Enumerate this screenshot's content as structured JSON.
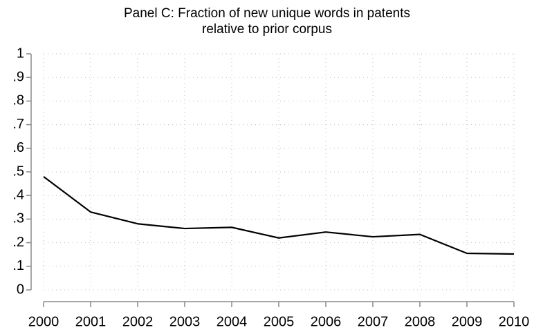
{
  "chart_data": {
    "type": "line",
    "title": [
      "Panel C: Fraction of new unique words in patents",
      "relative to prior corpus"
    ],
    "x": [
      2000,
      2001,
      2002,
      2003,
      2004,
      2005,
      2006,
      2007,
      2008,
      2009,
      2010
    ],
    "series": [
      {
        "color": "#000000",
        "values": [
          0.48,
          0.33,
          0.28,
          0.26,
          0.265,
          0.22,
          0.245,
          0.225,
          0.235,
          0.155,
          0.152
        ]
      }
    ],
    "xlim": [
      2000,
      2010
    ],
    "xticks": [
      2000,
      2001,
      2002,
      2003,
      2004,
      2005,
      2006,
      2007,
      2008,
      2009,
      2010
    ],
    "ylim": [
      0,
      1
    ],
    "yticks": [
      0,
      {
        "value": 0.1,
        "label": ".1"
      },
      {
        "value": 0.2,
        "label": ".2"
      },
      {
        "value": 0.3,
        "label": ".3"
      },
      {
        "value": 0.4,
        "label": ".4"
      },
      {
        "value": 0.5,
        "label": ".5"
      },
      {
        "value": 0.6,
        "label": ".6"
      },
      {
        "value": 0.7,
        "label": ".7"
      },
      {
        "value": 0.8,
        "label": ".8"
      },
      {
        "value": 0.9,
        "label": ".9"
      },
      1
    ],
    "grid": true
  }
}
